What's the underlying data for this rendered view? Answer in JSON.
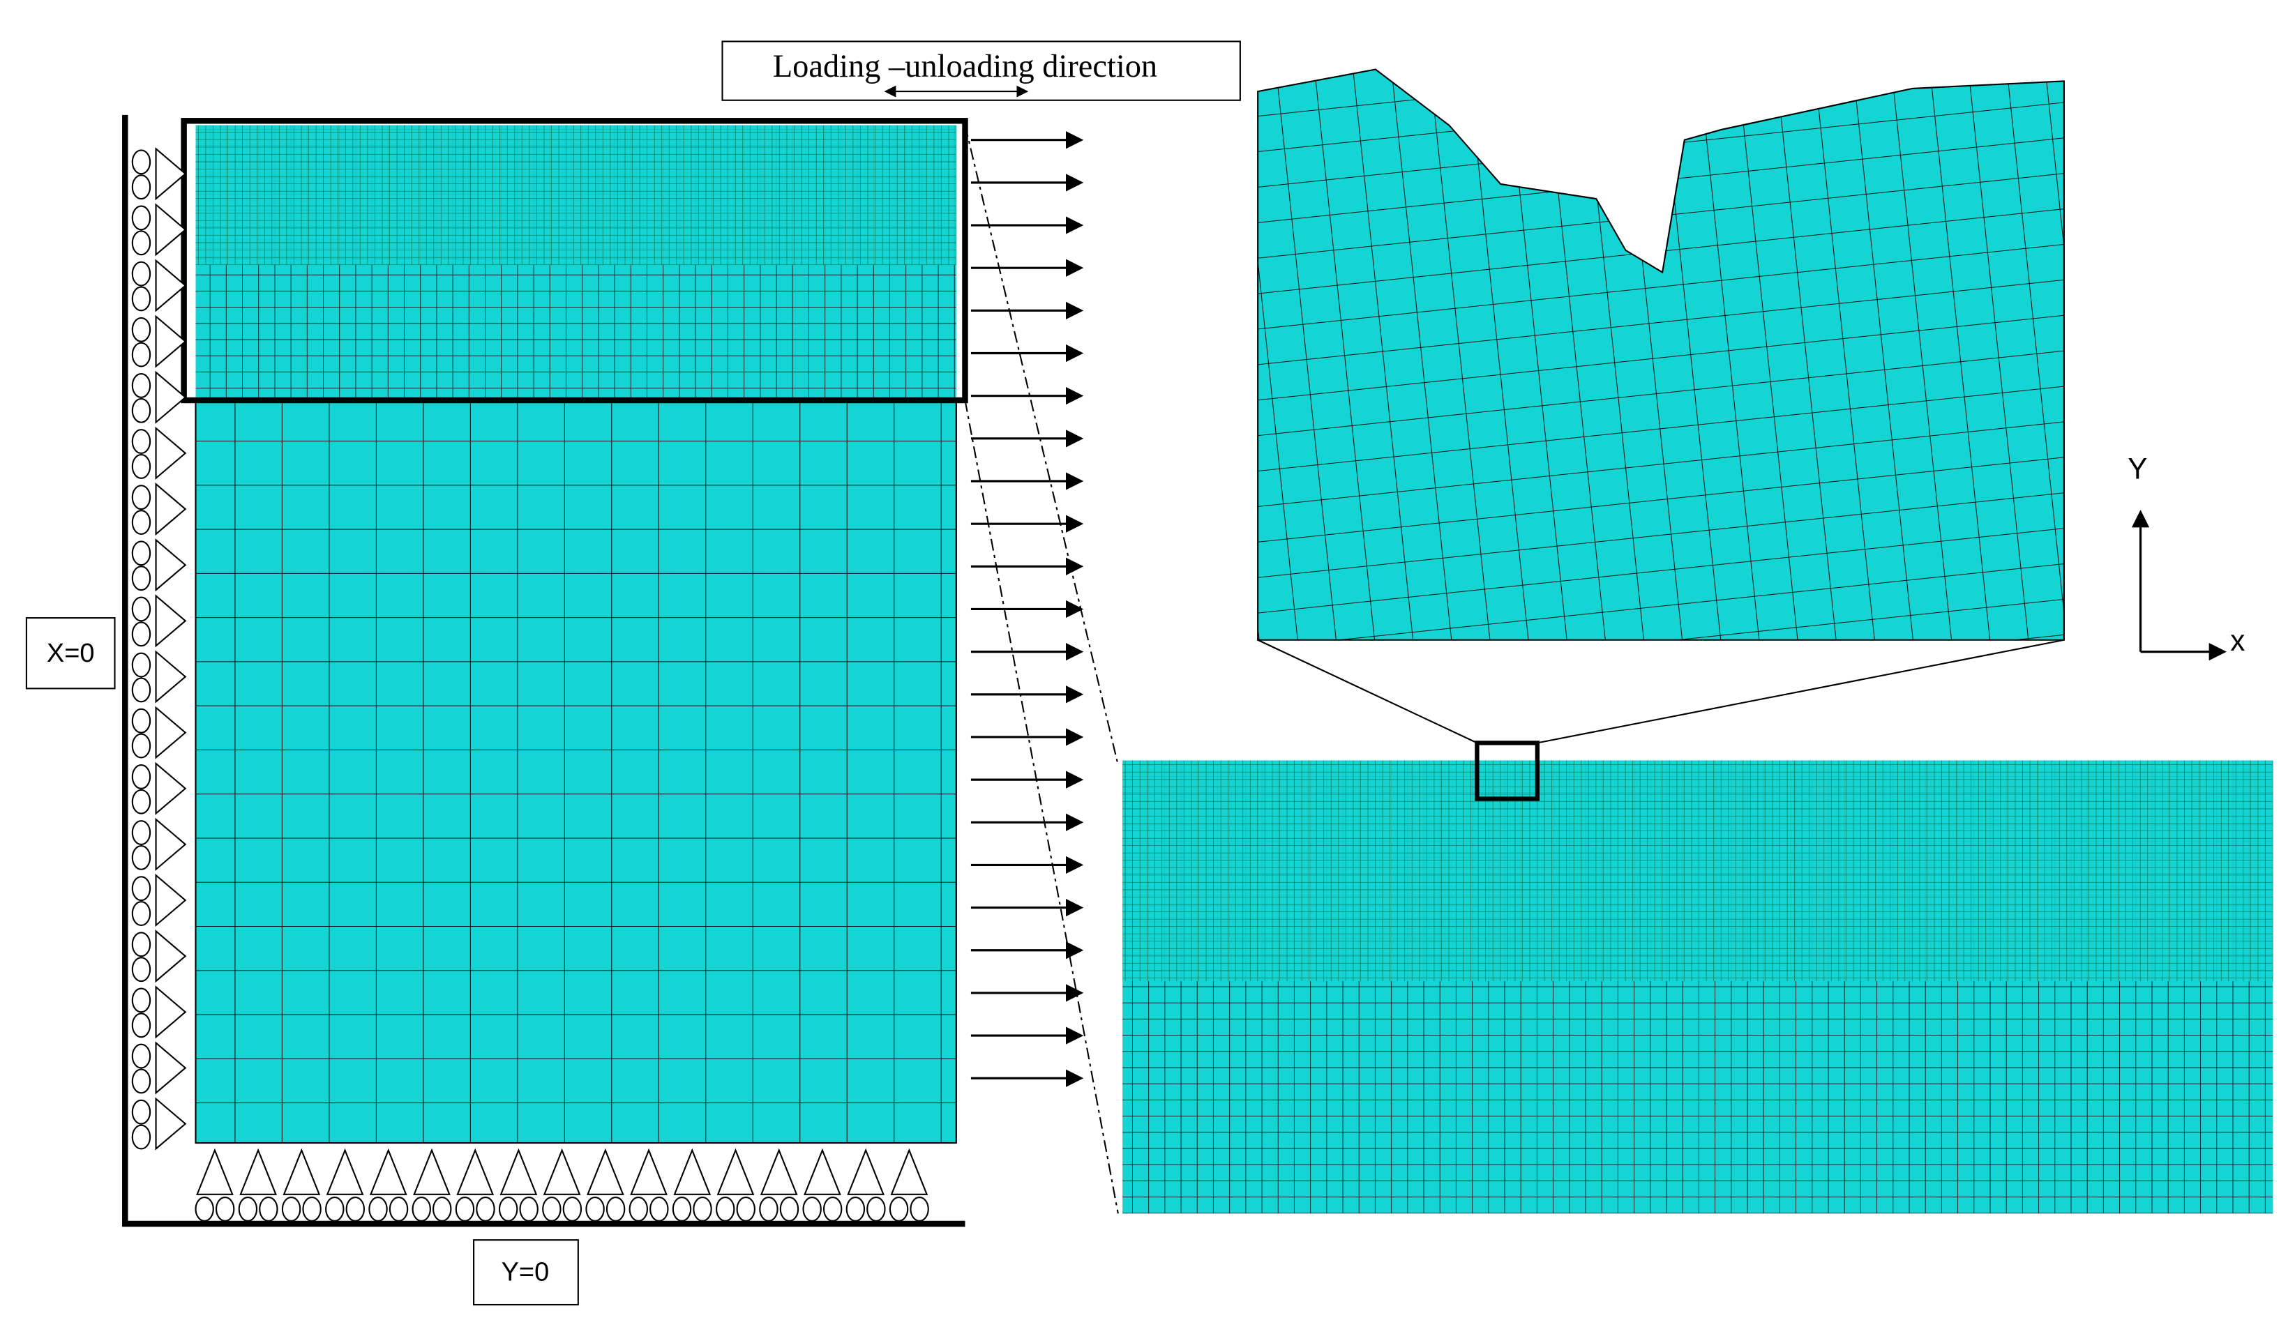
{
  "labels": {
    "loading_direction": "Loading –unloading direction",
    "x_boundary": "X=0",
    "y_boundary": "Y=0",
    "y_axis": "Y",
    "x_axis": "x"
  }
}
